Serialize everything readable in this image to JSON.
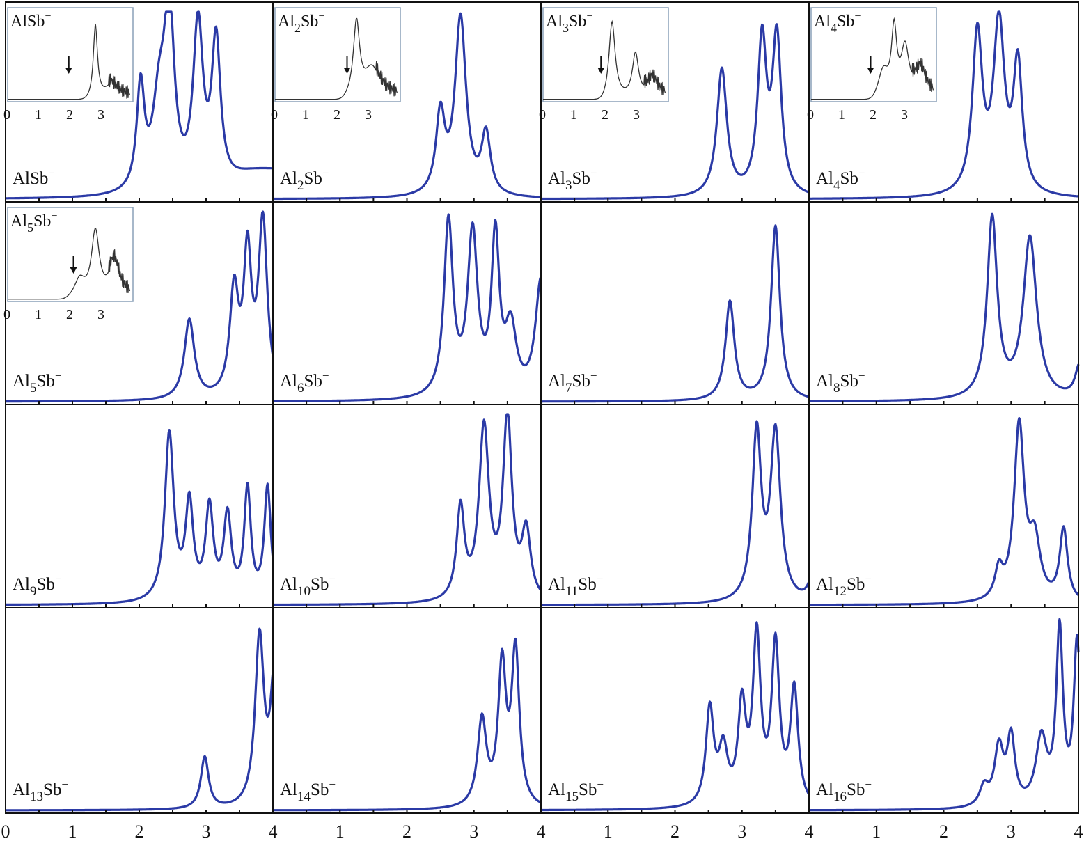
{
  "figure": {
    "rows": 4,
    "cols": 4,
    "curve_color": "#2b3aa6",
    "frame_color": "#111111",
    "inset_frame_color": "#8aa0b8",
    "inset_curve_color": "#333333"
  },
  "chart_data": {
    "type": "line",
    "title": "",
    "xlabel": "",
    "ylabel": "",
    "xlim": [
      0,
      4
    ],
    "x_tick_labels_bottom": [
      "0",
      "1",
      "2",
      "3",
      "4",
      "1",
      "2",
      "3",
      "4",
      "1",
      "2",
      "3",
      "4",
      "1",
      "2",
      "3",
      "4"
    ],
    "x_ticks": [
      0,
      1,
      2,
      3,
      4
    ],
    "minor_tick_step": 0.5,
    "grid": false,
    "legend": "none",
    "panels": [
      {
        "label_base": "Al",
        "label_sub": "",
        "label_rest": "Sb",
        "label_sup": "−",
        "peaks": [
          [
            2.02,
            0.55,
            0.07
          ],
          [
            2.3,
            0.45,
            0.12
          ],
          [
            2.45,
            0.92,
            0.09
          ],
          [
            2.88,
            0.88,
            0.09
          ],
          [
            3.15,
            0.78,
            0.08
          ]
        ],
        "tail": 0.15,
        "inset": {
          "ticks": [
            "0",
            "1",
            "2",
            "3"
          ],
          "arrow_x": 1.95,
          "peaks": [
            [
              2.8,
              0.85,
              0.08
            ],
            [
              3.3,
              0.15,
              0.25
            ]
          ],
          "onset": 2.5
        }
      },
      {
        "label_base": "Al",
        "label_sub": "2",
        "label_rest": "Sb",
        "label_sup": "−",
        "peaks": [
          [
            2.5,
            0.42,
            0.08
          ],
          [
            2.8,
            0.95,
            0.1
          ],
          [
            3.18,
            0.32,
            0.08
          ]
        ],
        "tail": 0,
        "inset": {
          "ticks": [
            "0",
            "1",
            "2",
            "3"
          ],
          "arrow_x": 2.3,
          "peaks": [
            [
              2.6,
              0.85,
              0.12
            ],
            [
              3.1,
              0.35,
              0.3
            ]
          ],
          "onset": 2.2
        }
      },
      {
        "label_base": "Al",
        "label_sub": "3",
        "label_rest": "Sb",
        "label_sup": "−",
        "peaks": [
          [
            2.7,
            0.68,
            0.09
          ],
          [
            3.3,
            0.82,
            0.08
          ],
          [
            3.52,
            0.83,
            0.08
          ]
        ],
        "tail": 0,
        "inset": {
          "ticks": [
            "0",
            "1",
            "2",
            "3"
          ],
          "arrow_x": 1.85,
          "peaks": [
            [
              2.2,
              0.9,
              0.12
            ],
            [
              2.95,
              0.5,
              0.12
            ],
            [
              3.5,
              0.2,
              0.2
            ]
          ],
          "onset": 1.9
        }
      },
      {
        "label_base": "Al",
        "label_sub": "4",
        "label_rest": "Sb",
        "label_sup": "−",
        "peaks": [
          [
            2.5,
            0.85,
            0.09
          ],
          [
            2.82,
            0.9,
            0.1
          ],
          [
            3.1,
            0.68,
            0.08
          ]
        ],
        "tail": 0,
        "inset": {
          "ticks": [
            "0",
            "1",
            "2",
            "3"
          ],
          "arrow_x": 1.9,
          "peaks": [
            [
              2.3,
              0.3,
              0.2
            ],
            [
              2.65,
              0.75,
              0.1
            ],
            [
              3.0,
              0.55,
              0.15
            ],
            [
              3.5,
              0.3,
              0.2
            ]
          ],
          "onset": 2.0
        }
      },
      {
        "label_base": "Al",
        "label_sub": "5",
        "label_rest": "Sb",
        "label_sup": "−",
        "peaks": [
          [
            2.75,
            0.42,
            0.09
          ],
          [
            3.42,
            0.55,
            0.08
          ],
          [
            3.62,
            0.72,
            0.07
          ],
          [
            3.85,
            0.92,
            0.08
          ]
        ],
        "tail": 0,
        "inset": {
          "ticks": [
            "0",
            "1",
            "2",
            "3"
          ],
          "arrow_x": 2.1,
          "peaks": [
            [
              2.3,
              0.2,
              0.2
            ],
            [
              2.8,
              0.75,
              0.15
            ],
            [
              3.4,
              0.4,
              0.2
            ]
          ],
          "onset": 1.9
        }
      },
      {
        "label_base": "Al",
        "label_sub": "6",
        "label_rest": "Sb",
        "label_sup": "−",
        "peaks": [
          [
            2.62,
            0.92,
            0.08
          ],
          [
            2.98,
            0.85,
            0.09
          ],
          [
            3.32,
            0.82,
            0.07
          ],
          [
            3.55,
            0.35,
            0.1
          ],
          [
            4.0,
            0.62,
            0.1
          ]
        ],
        "tail": 0,
        "inset": null
      },
      {
        "label_base": "Al",
        "label_sub": "7",
        "label_rest": "Sb",
        "label_sup": "−",
        "peaks": [
          [
            2.82,
            0.52,
            0.08
          ],
          [
            3.5,
            0.92,
            0.08
          ]
        ],
        "tail": 0,
        "inset": null
      },
      {
        "label_base": "Al",
        "label_sub": "8",
        "label_rest": "Sb",
        "label_sup": "−",
        "peaks": [
          [
            2.72,
            0.95,
            0.09
          ],
          [
            3.28,
            0.85,
            0.12
          ],
          [
            4.02,
            0.18,
            0.08
          ]
        ],
        "tail": 0,
        "inset": null
      },
      {
        "label_base": "Al",
        "label_sub": "9",
        "label_rest": "Sb",
        "label_sup": "−",
        "peaks": [
          [
            2.45,
            0.88,
            0.08
          ],
          [
            2.75,
            0.5,
            0.07
          ],
          [
            3.05,
            0.48,
            0.07
          ],
          [
            3.32,
            0.44,
            0.07
          ],
          [
            3.62,
            0.58,
            0.06
          ],
          [
            3.92,
            0.6,
            0.06
          ]
        ],
        "tail": 0,
        "inset": null
      },
      {
        "label_base": "Al",
        "label_sub": "10",
        "label_rest": "Sb",
        "label_sup": "−",
        "peaks": [
          [
            2.8,
            0.48,
            0.07
          ],
          [
            3.15,
            0.9,
            0.09
          ],
          [
            3.5,
            0.95,
            0.08
          ],
          [
            3.78,
            0.35,
            0.08
          ]
        ],
        "tail": 0,
        "inset": null
      },
      {
        "label_base": "Al",
        "label_sub": "11",
        "label_rest": "Sb",
        "label_sup": "−",
        "peaks": [
          [
            3.22,
            0.88,
            0.08
          ],
          [
            3.5,
            0.88,
            0.09
          ],
          [
            4.05,
            0.12,
            0.08
          ]
        ],
        "tail": 0,
        "inset": null
      },
      {
        "label_base": "Al",
        "label_sub": "12",
        "label_rest": "Sb",
        "label_sup": "−",
        "peaks": [
          [
            2.82,
            0.15,
            0.07
          ],
          [
            3.12,
            0.92,
            0.09
          ],
          [
            3.35,
            0.3,
            0.1
          ],
          [
            3.78,
            0.38,
            0.07
          ]
        ],
        "tail": 0,
        "inset": null
      },
      {
        "label_base": "Al",
        "label_sub": "13",
        "label_rest": "Sb",
        "label_sup": "−",
        "peaks": [
          [
            2.98,
            0.27,
            0.07
          ],
          [
            3.8,
            0.88,
            0.08
          ],
          [
            4.02,
            0.65,
            0.07
          ]
        ],
        "tail": 0,
        "inset": null
      },
      {
        "label_base": "Al",
        "label_sub": "14",
        "label_rest": "Sb",
        "label_sup": "−",
        "peaks": [
          [
            3.12,
            0.45,
            0.08
          ],
          [
            3.42,
            0.72,
            0.07
          ],
          [
            3.62,
            0.8,
            0.07
          ]
        ],
        "tail": 0,
        "inset": null
      },
      {
        "label_base": "Al",
        "label_sub": "15",
        "label_rest": "Sb",
        "label_sup": "−",
        "peaks": [
          [
            2.52,
            0.5,
            0.07
          ],
          [
            2.72,
            0.28,
            0.08
          ],
          [
            3.0,
            0.5,
            0.07
          ],
          [
            3.22,
            0.86,
            0.07
          ],
          [
            3.5,
            0.82,
            0.07
          ],
          [
            3.78,
            0.6,
            0.07
          ]
        ],
        "tail": 0,
        "inset": null
      },
      {
        "label_base": "Al",
        "label_sub": "16",
        "label_rest": "Sb",
        "label_sup": "−",
        "peaks": [
          [
            2.6,
            0.1,
            0.08
          ],
          [
            2.82,
            0.3,
            0.08
          ],
          [
            3.0,
            0.35,
            0.07
          ],
          [
            3.45,
            0.35,
            0.1
          ],
          [
            3.72,
            0.9,
            0.06
          ],
          [
            3.98,
            0.85,
            0.06
          ]
        ],
        "tail": 0,
        "inset": null
      }
    ]
  }
}
